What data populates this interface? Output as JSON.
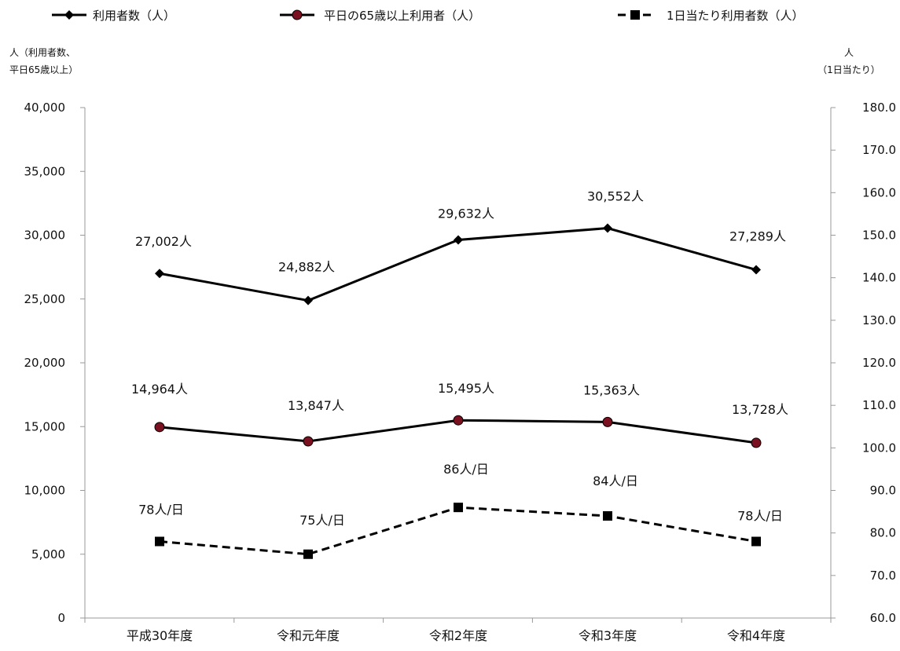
{
  "chart_data": {
    "type": "line",
    "categories": [
      "平成30年度",
      "令和元年度",
      "令和2年度",
      "令和3年度",
      "令和4年度"
    ],
    "series": [
      {
        "name": "利用者数（人）",
        "axis": "left",
        "color": "#000000",
        "marker": "diamond",
        "line_style": "solid",
        "values": [
          27002,
          24882,
          29632,
          30552,
          27289
        ],
        "labels": [
          "27,002人",
          "24,882人",
          "29,632人",
          "30,552人",
          "27,289人"
        ]
      },
      {
        "name": "平日の65歳以上利用者（人）",
        "axis": "left",
        "color": "#000000",
        "marker_color": "#7a1020",
        "marker": "circle",
        "line_style": "solid",
        "values": [
          14964,
          13847,
          15495,
          15363,
          13728
        ],
        "labels": [
          "14,964人",
          "13,847人",
          "15,495人",
          "15,363人",
          "13,728人"
        ]
      },
      {
        "name": "1日当たり利用者数（人）",
        "axis": "right",
        "color": "#000000",
        "marker": "square",
        "line_style": "dashed",
        "values": [
          78,
          75,
          86,
          84,
          78
        ],
        "labels": [
          "78人/日",
          "75人/日",
          "86人/日",
          "84人/日",
          "78人/日"
        ]
      }
    ],
    "y_left": {
      "title_lines": [
        "人（利用者数、",
        "平日65歳以上）"
      ],
      "ylim": [
        0,
        40000
      ],
      "ticks": [
        "0",
        "5,000",
        "10,000",
        "15,000",
        "20,000",
        "25,000",
        "30,000",
        "35,000",
        "40,000"
      ]
    },
    "y_right": {
      "title_lines": [
        "人",
        "（1日当たり）"
      ],
      "ylim": [
        60,
        180
      ],
      "ticks": [
        "60.0",
        "70.0",
        "80.0",
        "90.0",
        "100.0",
        "110.0",
        "120.0",
        "130.0",
        "140.0",
        "150.0",
        "160.0",
        "170.0",
        "180.0"
      ]
    },
    "grid": false,
    "legend_position": "top"
  }
}
